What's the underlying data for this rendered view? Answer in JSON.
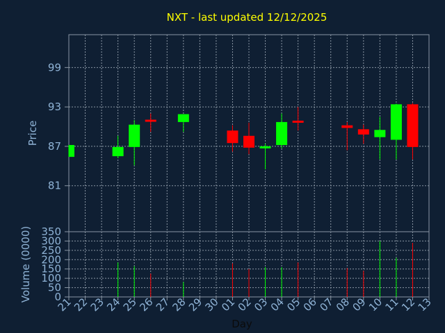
{
  "chart_data": {
    "type": "candlestick",
    "title": "NXT - last updated 12/12/2025",
    "ylabel": "Price",
    "volume_label": "Volume (0000)",
    "xlabel": "Day",
    "x_ticks": [
      "21",
      "22",
      "23",
      "24",
      "25",
      "26",
      "27",
      "28",
      "29",
      "30",
      "01",
      "02",
      "03",
      "04",
      "05",
      "06",
      "07",
      "08",
      "09",
      "10",
      "11",
      "12",
      "13"
    ],
    "price_ticks": [
      81,
      87,
      93,
      99
    ],
    "price_range": [
      74,
      104
    ],
    "volume_ticks": [
      0,
      50,
      100,
      150,
      200,
      250,
      300,
      350
    ],
    "volume_range": [
      0,
      350
    ],
    "grid": true,
    "colors": {
      "background": "#0f1f33",
      "up": "#00ff00",
      "down": "#ff0000",
      "grid": "#8a96a4",
      "title": "#ffff00",
      "tick": "#8fb3d6"
    },
    "candles": [
      {
        "day": "21",
        "open": 85.4,
        "high": 87.2,
        "low": 85.4,
        "close": 87.2,
        "volume": 0
      },
      {
        "day": "24",
        "open": 85.5,
        "high": 88.6,
        "low": 85.2,
        "close": 86.9,
        "volume": 185
      },
      {
        "day": "25",
        "open": 86.9,
        "high": 91.0,
        "low": 84.1,
        "close": 90.3,
        "volume": 165
      },
      {
        "day": "26",
        "open": 91.0,
        "high": 92.0,
        "low": 89.2,
        "close": 90.8,
        "volume": 125
      },
      {
        "day": "28",
        "open": 90.7,
        "high": 91.9,
        "low": 89.2,
        "close": 91.9,
        "volume": 80
      },
      {
        "day": "01",
        "open": 89.4,
        "high": 90.2,
        "low": 86.2,
        "close": 87.5,
        "volume": 180
      },
      {
        "day": "02",
        "open": 88.6,
        "high": 90.6,
        "low": 85.8,
        "close": 86.8,
        "volume": 150
      },
      {
        "day": "03",
        "open": 86.7,
        "high": 87.4,
        "low": 83.5,
        "close": 87.0,
        "volume": 160
      },
      {
        "day": "04",
        "open": 87.2,
        "high": 92.0,
        "low": 86.7,
        "close": 90.7,
        "volume": 160
      },
      {
        "day": "05",
        "open": 90.9,
        "high": 93.0,
        "low": 89.4,
        "close": 90.6,
        "volume": 185
      },
      {
        "day": "08",
        "open": 90.2,
        "high": 90.7,
        "low": 86.4,
        "close": 89.8,
        "volume": 155
      },
      {
        "day": "09",
        "open": 89.6,
        "high": 90.3,
        "low": 87.4,
        "close": 88.8,
        "volume": 140
      },
      {
        "day": "10",
        "open": 88.4,
        "high": 91.5,
        "low": 85.0,
        "close": 89.5,
        "volume": 300
      },
      {
        "day": "11",
        "open": 88.0,
        "high": 93.5,
        "low": 85.0,
        "close": 93.4,
        "volume": 210
      },
      {
        "day": "12",
        "open": 93.4,
        "high": 93.6,
        "low": 85.0,
        "close": 86.9,
        "volume": 290
      }
    ]
  }
}
